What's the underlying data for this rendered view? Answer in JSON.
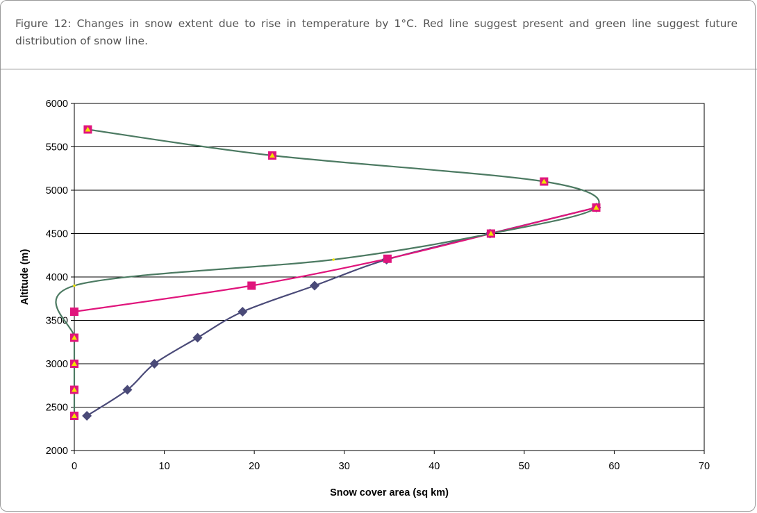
{
  "caption": "Figure 12:  Changes in snow extent due to rise in temperature by 1°C. Red line suggest present and green line suggest future distribution of snow line.",
  "chart_data": {
    "type": "line",
    "title": "",
    "xlabel": "Snow cover area (sq km)",
    "ylabel": "Altitude (m)",
    "xlim": [
      0,
      70
    ],
    "ylim": [
      2000,
      6000
    ],
    "xticks": [
      "0",
      "10",
      "20",
      "30",
      "40",
      "50",
      "60",
      "70"
    ],
    "yticks": [
      "2000",
      "2500",
      "3000",
      "3500",
      "4000",
      "4500",
      "5000",
      "5500",
      "6000"
    ],
    "grid": "horizontal",
    "legend": "none",
    "series": [
      {
        "color": "#4a4a78",
        "marker": "diamond",
        "points": [
          [
            1.4,
            2400
          ],
          [
            5.9,
            2700
          ],
          [
            8.9,
            3000
          ],
          [
            13.7,
            3300
          ],
          [
            18.7,
            3600
          ],
          [
            26.7,
            3900
          ],
          [
            34.7,
            4200
          ],
          [
            46.2,
            4500
          ],
          [
            58.0,
            4800
          ]
        ]
      },
      {
        "color": "#e0157c",
        "marker": "square",
        "points": [
          [
            0,
            3600
          ],
          [
            19.7,
            3900
          ],
          [
            34.8,
            4210
          ],
          [
            46.3,
            4500
          ],
          [
            58.0,
            4800
          ]
        ]
      },
      {
        "color": "#4c7a62",
        "marker": "square-triangle",
        "points": [
          [
            0,
            2400
          ],
          [
            0,
            2700
          ],
          [
            0,
            3000
          ],
          [
            0,
            3300
          ],
          [
            0,
            3900
          ],
          [
            28.8,
            4200
          ],
          [
            46.3,
            4500
          ],
          [
            58.0,
            4800
          ],
          [
            52.2,
            5100
          ],
          [
            22.0,
            5400
          ],
          [
            1.5,
            5700
          ]
        ]
      }
    ]
  }
}
